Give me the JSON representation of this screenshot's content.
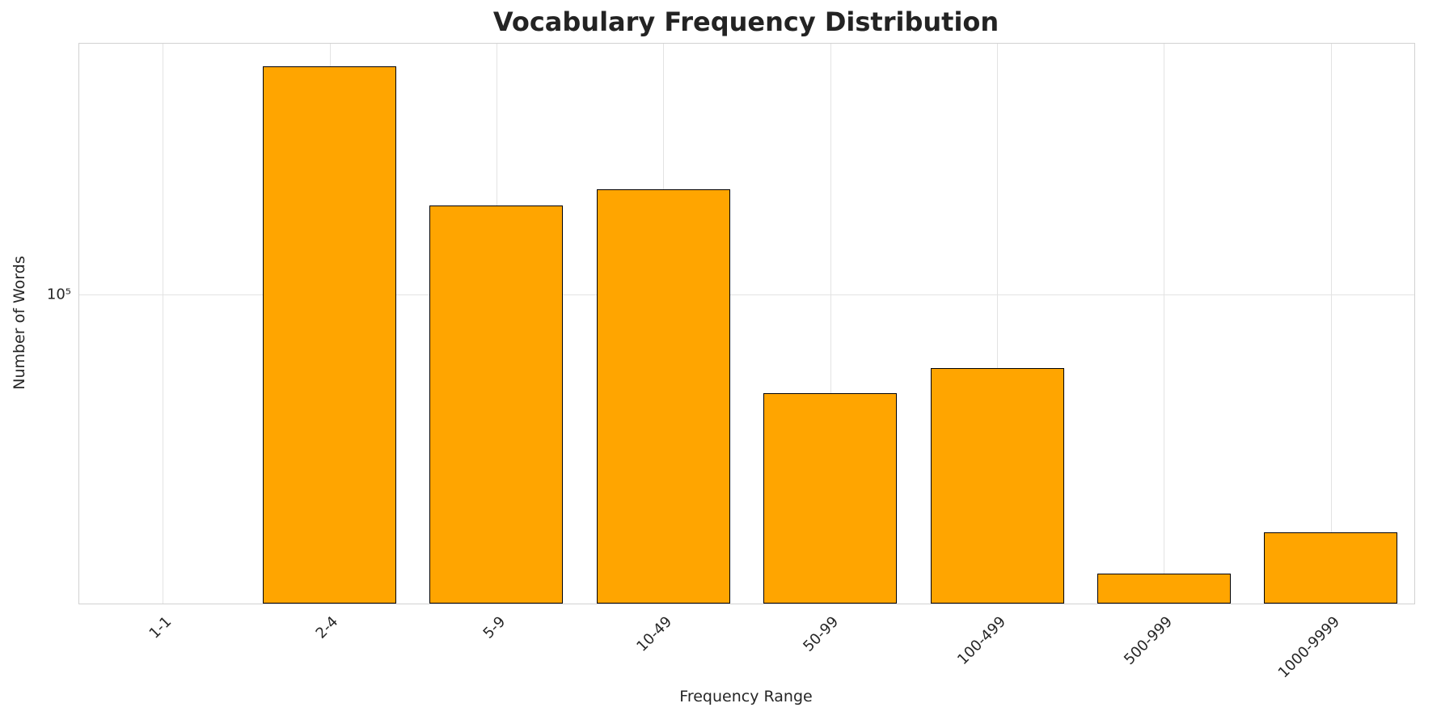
{
  "chart": {
    "title": "Vocabulary Frequency Distribution",
    "xlabel": "Frequency Range",
    "ylabel": "Number of Words",
    "bar_color": "#FFA500",
    "bar_edge_color": "#000000",
    "grid_color": "#e3e3e3"
  },
  "chart_data": {
    "type": "bar",
    "title": "Vocabulary Frequency Distribution",
    "xlabel": "Frequency Range",
    "ylabel": "Number of Words",
    "categories": [
      "1-1",
      "2-4",
      "5-9",
      "10-49",
      "50-99",
      "100-499",
      "500-999",
      "1000-9999"
    ],
    "values": [
      0,
      550000,
      195000,
      220000,
      48000,
      58000,
      12500,
      17000
    ],
    "yscale": "log",
    "ylim": [
      10000,
      650000
    ],
    "yticks": [
      {
        "value": 100000,
        "label": "10⁵"
      }
    ],
    "grid": true,
    "legend": false,
    "bar_width_fraction": 0.8
  }
}
